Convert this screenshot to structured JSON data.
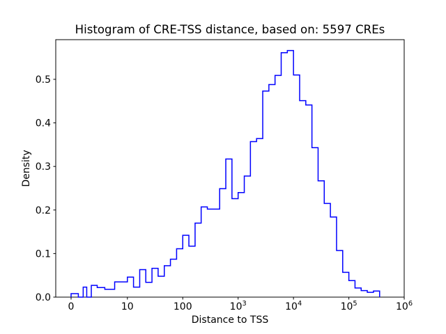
{
  "chart_data": {
    "type": "bar",
    "subtype": "step-histogram",
    "title": "Histogram of CRE-TSS distance, based on: 5597 CREs",
    "xlabel": "Distance to TSS",
    "ylabel": "Density",
    "x_scale": "symlog",
    "line_color": "#0000ff",
    "grid": "off",
    "legend": "none",
    "ylim": [
      0,
      0.591
    ],
    "xlim": [
      -2.7,
      1000000
    ],
    "y_ticks": [
      {
        "v": 0.0,
        "label": "0.0"
      },
      {
        "v": 0.1,
        "label": "0.1"
      },
      {
        "v": 0.2,
        "label": "0.2"
      },
      {
        "v": 0.3,
        "label": "0.3"
      },
      {
        "v": 0.4,
        "label": "0.4"
      },
      {
        "v": 0.5,
        "label": "0.5"
      }
    ],
    "x_ticks": [
      {
        "v": 0,
        "label": "0"
      },
      {
        "v": 10,
        "label": "10"
      },
      {
        "v": 100,
        "label": "100"
      },
      {
        "v": 1000,
        "label": "10",
        "exp": "3"
      },
      {
        "v": 10000,
        "label": "10",
        "exp": "4"
      },
      {
        "v": 100000,
        "label": "10",
        "exp": "5"
      },
      {
        "v": 1000000,
        "label": "10",
        "exp": "6"
      }
    ],
    "bin_edges": [
      0,
      1.29,
      2.15,
      2.78,
      3.59,
      4.64,
      5.99,
      7.74,
      10,
      12.9,
      16.7,
      21.5,
      27.8,
      35.9,
      46.4,
      59.9,
      77.4,
      100,
      129,
      167,
      215,
      278,
      359,
      464,
      599,
      774,
      1000,
      1292,
      1668,
      2154,
      2783,
      3594,
      4642,
      5995,
      7743,
      10000,
      12915,
      16681,
      21544,
      27826,
      35938,
      46416,
      59948,
      77426,
      100000,
      129155,
      166810,
      215443,
      278256,
      359381
    ],
    "densities": [
      0.008,
      0,
      0.023,
      0,
      0.027,
      0.022,
      0.018,
      0.035,
      0.046,
      0.023,
      0.063,
      0.034,
      0.066,
      0.048,
      0.072,
      0.087,
      0.111,
      0.142,
      0.117,
      0.17,
      0.207,
      0.202,
      0.202,
      0.249,
      0.317,
      0.226,
      0.24,
      0.278,
      0.357,
      0.364,
      0.473,
      0.488,
      0.509,
      0.561,
      0.566,
      0.51,
      0.451,
      0.441,
      0.343,
      0.267,
      0.215,
      0.184,
      0.107,
      0.057,
      0.038,
      0.021,
      0.015,
      0.011,
      0.014
    ]
  }
}
